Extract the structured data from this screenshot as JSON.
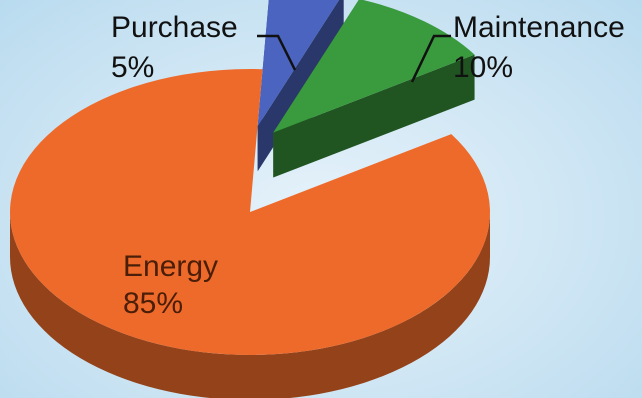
{
  "chart_data": {
    "type": "pie",
    "title": "",
    "series": [
      {
        "name": "",
        "slices": [
          {
            "label": "Energy",
            "value": 85,
            "value_label": "85%",
            "color": "#ee6a2a",
            "exploded": false
          },
          {
            "label": "Purchase",
            "value": 5,
            "value_label": "5%",
            "color": "#4a64c0",
            "exploded": true
          },
          {
            "label": "Maintenance",
            "value": 10,
            "value_label": "10%",
            "color": "#3a9a3e",
            "exploded": true
          }
        ]
      }
    ],
    "style": "3d-exploded",
    "legend": "none"
  }
}
